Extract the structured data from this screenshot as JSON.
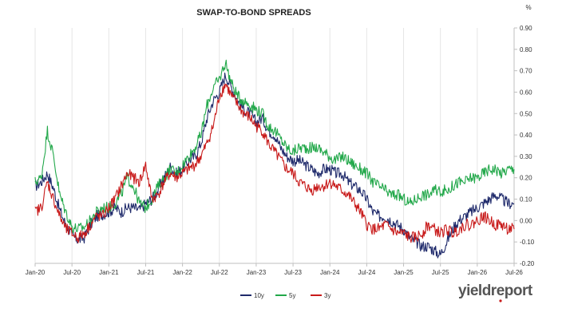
{
  "chart_data": {
    "type": "line",
    "title": "SWAP-TO-BOND SPREADS",
    "y_unit": "%",
    "ylim": [
      -0.2,
      0.9
    ],
    "y_ticks": [
      "0.90",
      "0.80",
      "0.70",
      "0.60",
      "0.50",
      "0.40",
      "0.30",
      "0.20",
      "0.10",
      "0.00",
      "-0.10",
      "-0.20"
    ],
    "x_ticks": [
      "Jan-20",
      "Jul-20",
      "Jan-21",
      "Jul-21",
      "Jan-22",
      "Jul-22",
      "Jan-23",
      "Jul-23",
      "Jan-24",
      "Jul-24",
      "Jan-25",
      "Jul-25",
      "Jan-26",
      "Jul-26"
    ],
    "xlim": [
      "2020-01",
      "2026-07"
    ],
    "grid": "vertical",
    "legend_position": "bottom",
    "series": [
      {
        "name": "10y",
        "color": "#1f2a6b",
        "x": [
          "2020-01",
          "2020-02",
          "2020-03",
          "2020-04",
          "2020-05",
          "2020-06",
          "2020-07",
          "2020-08",
          "2020-09",
          "2020-10",
          "2020-11",
          "2020-12",
          "2021-01",
          "2021-02",
          "2021-03",
          "2021-04",
          "2021-05",
          "2021-06",
          "2021-07",
          "2021-08",
          "2021-09",
          "2021-10",
          "2021-11",
          "2021-12",
          "2022-01",
          "2022-02",
          "2022-03",
          "2022-04",
          "2022-05",
          "2022-06",
          "2022-07",
          "2022-08",
          "2022-09",
          "2022-10",
          "2022-11",
          "2022-12",
          "2023-01",
          "2023-02",
          "2023-03",
          "2023-04",
          "2023-05",
          "2023-06",
          "2023-07",
          "2023-08",
          "2023-09",
          "2023-10",
          "2023-11",
          "2023-12",
          "2024-01",
          "2024-02",
          "2024-03",
          "2024-04",
          "2024-05",
          "2024-06",
          "2024-07",
          "2024-08",
          "2024-09",
          "2024-10",
          "2024-11",
          "2024-12",
          "2025-01",
          "2025-02",
          "2025-03",
          "2025-04",
          "2025-05",
          "2025-06",
          "2025-07",
          "2025-08",
          "2025-09",
          "2025-10",
          "2025-11",
          "2025-12",
          "2026-01",
          "2026-02",
          "2026-03",
          "2026-04",
          "2026-05",
          "2026-06",
          "2026-07"
        ],
        "values": [
          0.16,
          0.18,
          0.22,
          0.15,
          0.05,
          -0.02,
          -0.07,
          -0.09,
          -0.08,
          -0.02,
          0.02,
          0.03,
          0.04,
          0.06,
          0.04,
          0.06,
          0.06,
          0.05,
          0.08,
          0.1,
          0.14,
          0.2,
          0.25,
          0.22,
          0.24,
          0.28,
          0.3,
          0.36,
          0.48,
          0.56,
          0.6,
          0.68,
          0.62,
          0.56,
          0.52,
          0.5,
          0.46,
          0.48,
          0.42,
          0.4,
          0.34,
          0.3,
          0.28,
          0.28,
          0.26,
          0.24,
          0.22,
          0.24,
          0.24,
          0.22,
          0.22,
          0.18,
          0.16,
          0.14,
          0.1,
          0.04,
          0.02,
          0.02,
          0.0,
          -0.02,
          -0.04,
          -0.08,
          -0.1,
          -0.12,
          -0.12,
          -0.14,
          -0.16,
          -0.1,
          -0.04,
          0.0,
          0.02,
          0.04,
          0.06,
          0.08,
          0.1,
          0.12,
          0.1,
          0.08,
          0.08
        ]
      },
      {
        "name": "5y",
        "color": "#22a84a",
        "x": [
          "2020-01",
          "2020-02",
          "2020-03",
          "2020-04",
          "2020-05",
          "2020-06",
          "2020-07",
          "2020-08",
          "2020-09",
          "2020-10",
          "2020-11",
          "2020-12",
          "2021-01",
          "2021-02",
          "2021-03",
          "2021-04",
          "2021-05",
          "2021-06",
          "2021-07",
          "2021-08",
          "2021-09",
          "2021-10",
          "2021-11",
          "2021-12",
          "2022-01",
          "2022-02",
          "2022-03",
          "2022-04",
          "2022-05",
          "2022-06",
          "2022-07",
          "2022-08",
          "2022-09",
          "2022-10",
          "2022-11",
          "2022-12",
          "2023-01",
          "2023-02",
          "2023-03",
          "2023-04",
          "2023-05",
          "2023-06",
          "2023-07",
          "2023-08",
          "2023-09",
          "2023-10",
          "2023-11",
          "2023-12",
          "2024-01",
          "2024-02",
          "2024-03",
          "2024-04",
          "2024-05",
          "2024-06",
          "2024-07",
          "2024-08",
          "2024-09",
          "2024-10",
          "2024-11",
          "2024-12",
          "2025-01",
          "2025-02",
          "2025-03",
          "2025-04",
          "2025-05",
          "2025-06",
          "2025-07",
          "2025-08",
          "2025-09",
          "2025-10",
          "2025-11",
          "2025-12",
          "2026-01",
          "2026-02",
          "2026-03",
          "2026-04",
          "2026-05",
          "2026-06",
          "2026-07"
        ],
        "values": [
          0.18,
          0.2,
          0.42,
          0.3,
          0.12,
          0.04,
          -0.03,
          -0.04,
          -0.03,
          0.0,
          0.04,
          0.06,
          0.06,
          0.08,
          0.12,
          0.2,
          0.16,
          0.08,
          0.06,
          0.1,
          0.16,
          0.2,
          0.24,
          0.22,
          0.26,
          0.3,
          0.34,
          0.4,
          0.54,
          0.62,
          0.66,
          0.74,
          0.64,
          0.58,
          0.56,
          0.54,
          0.52,
          0.5,
          0.44,
          0.42,
          0.38,
          0.34,
          0.32,
          0.34,
          0.34,
          0.34,
          0.34,
          0.32,
          0.3,
          0.28,
          0.3,
          0.28,
          0.26,
          0.24,
          0.22,
          0.18,
          0.16,
          0.14,
          0.12,
          0.12,
          0.1,
          0.08,
          0.1,
          0.12,
          0.12,
          0.14,
          0.14,
          0.14,
          0.16,
          0.18,
          0.18,
          0.2,
          0.2,
          0.22,
          0.24,
          0.24,
          0.22,
          0.24,
          0.24
        ]
      },
      {
        "name": "3y",
        "color": "#c81a1a",
        "x": [
          "2020-01",
          "2020-02",
          "2020-03",
          "2020-04",
          "2020-05",
          "2020-06",
          "2020-07",
          "2020-08",
          "2020-09",
          "2020-10",
          "2020-11",
          "2020-12",
          "2021-01",
          "2021-02",
          "2021-03",
          "2021-04",
          "2021-05",
          "2021-06",
          "2021-07",
          "2021-08",
          "2021-09",
          "2021-10",
          "2021-11",
          "2021-12",
          "2022-01",
          "2022-02",
          "2022-03",
          "2022-04",
          "2022-05",
          "2022-06",
          "2022-07",
          "2022-08",
          "2022-09",
          "2022-10",
          "2022-11",
          "2022-12",
          "2023-01",
          "2023-02",
          "2023-03",
          "2023-04",
          "2023-05",
          "2023-06",
          "2023-07",
          "2023-08",
          "2023-09",
          "2023-10",
          "2023-11",
          "2023-12",
          "2024-01",
          "2024-02",
          "2024-03",
          "2024-04",
          "2024-05",
          "2024-06",
          "2024-07",
          "2024-08",
          "2024-09",
          "2024-10",
          "2024-11",
          "2024-12",
          "2025-01",
          "2025-02",
          "2025-03",
          "2025-04",
          "2025-05",
          "2025-06",
          "2025-07",
          "2025-08",
          "2025-09",
          "2025-10",
          "2025-11",
          "2025-12",
          "2026-01",
          "2026-02",
          "2026-03",
          "2026-04",
          "2026-05",
          "2026-06",
          "2026-07"
        ],
        "values": [
          0.04,
          0.06,
          0.18,
          0.1,
          0.02,
          -0.04,
          -0.06,
          -0.08,
          -0.06,
          -0.02,
          0.02,
          0.02,
          0.06,
          0.1,
          0.16,
          0.22,
          0.2,
          0.18,
          0.26,
          0.1,
          0.12,
          0.18,
          0.22,
          0.2,
          0.22,
          0.24,
          0.26,
          0.3,
          0.36,
          0.44,
          0.58,
          0.64,
          0.58,
          0.54,
          0.5,
          0.48,
          0.44,
          0.42,
          0.36,
          0.32,
          0.28,
          0.24,
          0.22,
          0.18,
          0.16,
          0.14,
          0.16,
          0.16,
          0.18,
          0.16,
          0.14,
          0.12,
          0.08,
          0.04,
          -0.02,
          -0.04,
          -0.04,
          -0.02,
          -0.04,
          -0.06,
          -0.06,
          -0.08,
          -0.08,
          -0.06,
          -0.02,
          -0.04,
          -0.06,
          -0.04,
          -0.06,
          -0.04,
          -0.02,
          -0.02,
          0.0,
          0.02,
          0.0,
          -0.02,
          -0.02,
          -0.04,
          -0.04
        ]
      }
    ]
  },
  "branding": {
    "logo_text": "yieldreport"
  }
}
